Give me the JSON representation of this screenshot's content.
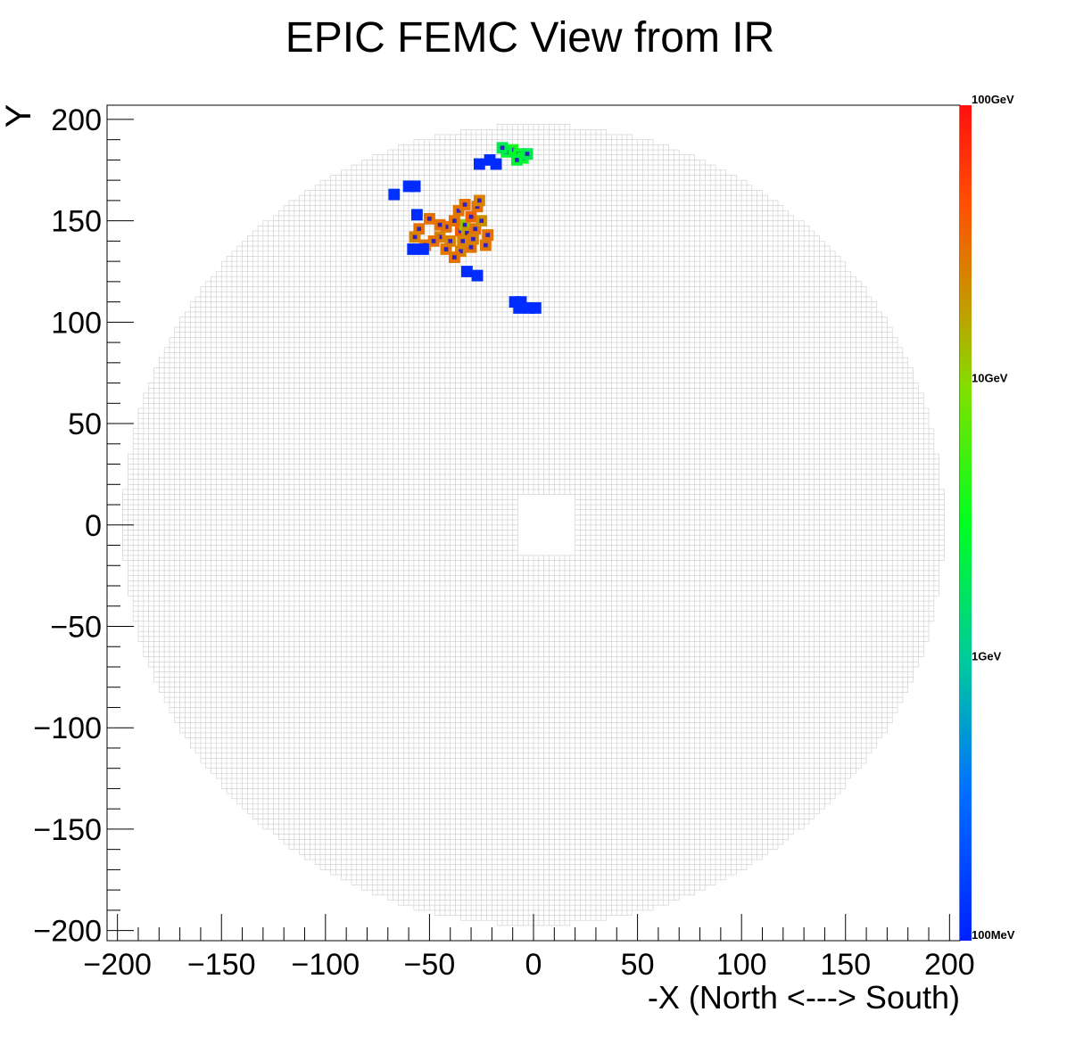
{
  "chart_data": {
    "type": "heatmap",
    "title": "EPIC FEMC View from IR",
    "xlabel": "-X (North <---> South)",
    "ylabel": "Y",
    "xlim": [
      -205,
      205
    ],
    "ylim": [
      -205,
      207
    ],
    "x_ticks": [
      -200,
      -150,
      -100,
      -50,
      0,
      50,
      100,
      150,
      200
    ],
    "x_tick_labels": [
      "−200",
      "−150",
      "−100",
      "−50",
      "0",
      "50",
      "100",
      "150",
      "200"
    ],
    "y_ticks": [
      -200,
      -150,
      -100,
      -50,
      0,
      50,
      100,
      150,
      200
    ],
    "y_tick_labels": [
      "−200",
      "−150",
      "−100",
      "−50",
      "0",
      "50",
      "100",
      "150",
      "200"
    ],
    "detector": {
      "cell_size": 2.5,
      "radius": 197,
      "beam_hole": {
        "x": [
          -8,
          20
        ],
        "y": [
          -15,
          15
        ]
      },
      "grid_color": "#cccccc"
    },
    "colorbar": {
      "scale": "log",
      "min_gev": 0.1,
      "max_gev": 100,
      "tick_labels": [
        "100GeV",
        "10GeV",
        "1GeV",
        "100MeV"
      ],
      "tick_values_gev": [
        100,
        10,
        1,
        0.1
      ]
    },
    "hits": [
      {
        "x": -35,
        "y": 145,
        "e": 40
      },
      {
        "x": -33,
        "y": 148,
        "e": 12
      },
      {
        "x": -32,
        "y": 144,
        "e": 20
      },
      {
        "x": -38,
        "y": 150,
        "e": 30
      },
      {
        "x": -40,
        "y": 140,
        "e": 25
      },
      {
        "x": -30,
        "y": 152,
        "e": 35
      },
      {
        "x": -28,
        "y": 146,
        "e": 30
      },
      {
        "x": -36,
        "y": 155,
        "e": 28
      },
      {
        "x": -42,
        "y": 147,
        "e": 30
      },
      {
        "x": -45,
        "y": 142,
        "e": 25
      },
      {
        "x": -25,
        "y": 150,
        "e": 22
      },
      {
        "x": -27,
        "y": 157,
        "e": 30
      },
      {
        "x": -30,
        "y": 137,
        "e": 30
      },
      {
        "x": -35,
        "y": 135,
        "e": 25
      },
      {
        "x": -38,
        "y": 132,
        "e": 30
      },
      {
        "x": -48,
        "y": 140,
        "e": 30
      },
      {
        "x": -52,
        "y": 138,
        "e": 28
      },
      {
        "x": -55,
        "y": 146,
        "e": 30
      },
      {
        "x": -57,
        "y": 142,
        "e": 25
      },
      {
        "x": -50,
        "y": 151,
        "e": 30
      },
      {
        "x": -22,
        "y": 143,
        "e": 30
      },
      {
        "x": -23,
        "y": 138,
        "e": 28
      },
      {
        "x": -26,
        "y": 160,
        "e": 25
      },
      {
        "x": -33,
        "y": 158,
        "e": 30
      },
      {
        "x": -42,
        "y": 136,
        "e": 28
      },
      {
        "x": -45,
        "y": 148,
        "e": 30
      },
      {
        "x": -34,
        "y": 140,
        "e": 25
      },
      {
        "x": -29,
        "y": 141,
        "e": 26
      },
      {
        "x": -10,
        "y": 185,
        "e": 4
      },
      {
        "x": -7,
        "y": 183,
        "e": 3
      },
      {
        "x": -5,
        "y": 181,
        "e": 3
      },
      {
        "x": -13,
        "y": 184,
        "e": 2.5
      },
      {
        "x": -3,
        "y": 183,
        "e": 2
      },
      {
        "x": -8,
        "y": 180,
        "e": 2.5
      },
      {
        "x": -15,
        "y": 186,
        "e": 2
      },
      {
        "x": -60,
        "y": 167,
        "e": 0.12
      },
      {
        "x": -67,
        "y": 163,
        "e": 0.13
      },
      {
        "x": -57,
        "y": 167,
        "e": 0.12
      },
      {
        "x": -21,
        "y": 180,
        "e": 0.12
      },
      {
        "x": -26,
        "y": 178,
        "e": 0.12
      },
      {
        "x": -18,
        "y": 178,
        "e": 0.12
      },
      {
        "x": -58,
        "y": 136,
        "e": 0.12
      },
      {
        "x": -53,
        "y": 136,
        "e": 0.12
      },
      {
        "x": -56,
        "y": 153,
        "e": 0.12
      },
      {
        "x": -32,
        "y": 125,
        "e": 0.12
      },
      {
        "x": -27,
        "y": 123,
        "e": 0.12
      },
      {
        "x": -9,
        "y": 110,
        "e": 0.12
      },
      {
        "x": -7,
        "y": 107,
        "e": 0.12
      },
      {
        "x": -2,
        "y": 107,
        "e": 0.12
      },
      {
        "x": 1,
        "y": 107,
        "e": 0.12
      },
      {
        "x": -6,
        "y": 110,
        "e": 0.12
      }
    ]
  }
}
